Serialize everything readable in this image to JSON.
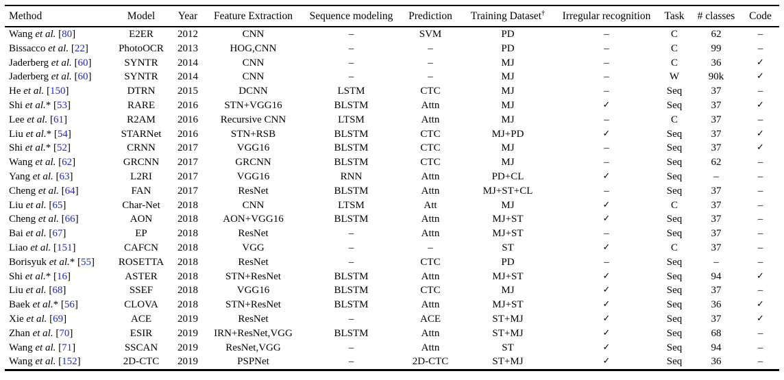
{
  "colors": {
    "citation_blue": "#2323CC",
    "text": "#000000",
    "background": "#ffffff"
  },
  "table": {
    "columns": [
      "Method",
      "Model",
      "Year",
      "Feature Extraction",
      "Sequence modeling",
      "Prediction",
      "Training Dataset",
      "Irregular recognition",
      "Task",
      "# classes",
      "Code"
    ],
    "training_dataset_superscript": "†",
    "cite_brackets": [
      "[",
      "]"
    ],
    "etal_label": "et al.",
    "check_symbol": "✓",
    "dash_symbol": "–",
    "rows": [
      {
        "method": {
          "name": "Wang",
          "etal": "et al.",
          "star": "",
          "cite": "80"
        },
        "cells": [
          "E2ER",
          "2012",
          "CNN",
          "–",
          "SVM",
          "PD",
          "–",
          "C",
          "62",
          "–"
        ]
      },
      {
        "method": {
          "name": "Bissacco",
          "etal": "et al.",
          "star": "",
          "cite": "22"
        },
        "cells": [
          "PhotoOCR",
          "2013",
          "HOG,CNN",
          "–",
          "–",
          "PD",
          "–",
          "C",
          "99",
          "–"
        ]
      },
      {
        "method": {
          "name": "Jaderberg",
          "etal": "et al.",
          "star": "",
          "cite": "60"
        },
        "cells": [
          "SYNTR",
          "2014",
          "CNN",
          "–",
          "–",
          "MJ",
          "–",
          "C",
          "36",
          "✓"
        ]
      },
      {
        "method": {
          "name": "Jaderberg",
          "etal": "et al.",
          "star": "",
          "cite": "60"
        },
        "cells": [
          "SYNTR",
          "2014",
          "CNN",
          "–",
          "–",
          "MJ",
          "–",
          "W",
          "90k",
          "✓"
        ]
      },
      {
        "method": {
          "name": "He",
          "etal": "et al.",
          "star": "",
          "cite": "150"
        },
        "cells": [
          "DTRN",
          "2015",
          "DCNN",
          "LSTM",
          "CTC",
          "MJ",
          "–",
          "Seq",
          "37",
          "–"
        ]
      },
      {
        "method": {
          "name": "Shi",
          "etal": "et al.",
          "star": "*",
          "cite": "53"
        },
        "cells": [
          "RARE",
          "2016",
          "STN+VGG16",
          "BLSTM",
          "Attn",
          "MJ",
          "✓",
          "Seq",
          "37",
          "✓"
        ]
      },
      {
        "method": {
          "name": "Lee",
          "etal": "et al.",
          "star": "",
          "cite": "61"
        },
        "cells": [
          "R2AM",
          "2016",
          "Recursive CNN",
          "LTSM",
          "Attn",
          "MJ",
          "–",
          "C",
          "37",
          "–"
        ]
      },
      {
        "method": {
          "name": "Liu",
          "etal": "et al.",
          "star": "*",
          "cite": "54"
        },
        "cells": [
          "STARNet",
          "2016",
          "STN+RSB",
          "BLSTM",
          "CTC",
          "MJ+PD",
          "✓",
          "Seq",
          "37",
          "✓"
        ]
      },
      {
        "method": {
          "name": "Shi",
          "etal": "et al.",
          "star": "*",
          "cite": "52"
        },
        "cells": [
          "CRNN",
          "2017",
          "VGG16",
          "BLSTM",
          "CTC",
          "MJ",
          "–",
          "Seq",
          "37",
          "✓"
        ]
      },
      {
        "method": {
          "name": "Wang",
          "etal": "et al.",
          "star": "",
          "cite": "62"
        },
        "cells": [
          "GRCNN",
          "2017",
          "GRCNN",
          "BLSTM",
          "CTC",
          "MJ",
          "–",
          "Seq",
          "62",
          "–"
        ]
      },
      {
        "method": {
          "name": "Yang",
          "etal": "et al.",
          "star": "",
          "cite": "63"
        },
        "cells": [
          "L2RI",
          "2017",
          "VGG16",
          "RNN",
          "Attn",
          "PD+CL",
          "✓",
          "Seq",
          "–",
          "–"
        ]
      },
      {
        "method": {
          "name": "Cheng",
          "etal": "et al.",
          "star": "",
          "cite": "64"
        },
        "cells": [
          "FAN",
          "2017",
          "ResNet",
          "BLSTM",
          "Attn",
          "MJ+ST+CL",
          "–",
          "Seq",
          "37",
          "–"
        ]
      },
      {
        "method": {
          "name": "Liu",
          "etal": "et al.",
          "star": "",
          "cite": "65"
        },
        "cells": [
          "Char-Net",
          "2018",
          "CNN",
          "LTSM",
          "Att",
          "MJ",
          "✓",
          "C",
          "37",
          "–"
        ]
      },
      {
        "method": {
          "name": "Cheng",
          "etal": "et al.",
          "star": "",
          "cite": "66"
        },
        "cells": [
          "AON",
          "2018",
          "AON+VGG16",
          "BLSTM",
          "Attn",
          "MJ+ST",
          "✓",
          "Seq",
          "37",
          "–"
        ]
      },
      {
        "method": {
          "name": "Bai",
          "etal": "et al.",
          "star": "",
          "cite": "67"
        },
        "cells": [
          "EP",
          "2018",
          "ResNet",
          "–",
          "Attn",
          "MJ+ST",
          "–",
          "Seq",
          "37",
          "–"
        ]
      },
      {
        "method": {
          "name": "Liao",
          "etal": "et al.",
          "star": "",
          "cite": "151"
        },
        "cells": [
          "CAFCN",
          "2018",
          "VGG",
          "–",
          "–",
          "ST",
          "✓",
          "C",
          "37",
          "–"
        ]
      },
      {
        "method": {
          "name": "Borisyuk",
          "etal": "et al.",
          "star": "*",
          "cite": "55"
        },
        "cells": [
          "ROSETTA",
          "2018",
          "ResNet",
          "–",
          "CTC",
          "PD",
          "–",
          "Seq",
          "–",
          "–"
        ]
      },
      {
        "method": {
          "name": "Shi",
          "etal": "et al.",
          "star": "*",
          "cite": "16"
        },
        "cells": [
          "ASTER",
          "2018",
          "STN+ResNet",
          "BLSTM",
          "Attn",
          "MJ+ST",
          "✓",
          "Seq",
          "94",
          "✓"
        ]
      },
      {
        "method": {
          "name": "Liu",
          "etal": "et al.",
          "star": "",
          "cite": "68"
        },
        "cells": [
          "SSEF",
          "2018",
          "VGG16",
          "BLSTM",
          "CTC",
          "MJ",
          "✓",
          "Seq",
          "37",
          "–"
        ]
      },
      {
        "method": {
          "name": "Baek",
          "etal": "et al.",
          "star": "*",
          "cite": "56"
        },
        "cells": [
          "CLOVA",
          "2018",
          "STN+ResNet",
          "BLSTM",
          "Attn",
          "MJ+ST",
          "✓",
          "Seq",
          "36",
          "✓"
        ]
      },
      {
        "method": {
          "name": "Xie",
          "etal": "et al.",
          "star": "",
          "cite": "69"
        },
        "cells": [
          "ACE",
          "2019",
          "ResNet",
          "–",
          "ACE",
          "ST+MJ",
          "✓",
          "Seq",
          "37",
          "✓"
        ]
      },
      {
        "method": {
          "name": "Zhan",
          "etal": "et al.",
          "star": "",
          "cite": "70"
        },
        "cells": [
          "ESIR",
          "2019",
          "IRN+ResNet,VGG",
          "BLSTM",
          "Attn",
          "ST+MJ",
          "✓",
          "Seq",
          "68",
          "–"
        ]
      },
      {
        "method": {
          "name": "Wang",
          "etal": "et al.",
          "star": "",
          "cite": "71"
        },
        "cells": [
          "SSCAN",
          "2019",
          "ResNet,VGG",
          "–",
          "Attn",
          "ST",
          "✓",
          "Seq",
          "94",
          "–"
        ]
      },
      {
        "method": {
          "name": "Wang",
          "etal": "et al.",
          "star": "",
          "cite": "152"
        },
        "cells": [
          "2D-CTC",
          "2019",
          "PSPNet",
          "–",
          "2D-CTC",
          "ST+MJ",
          "✓",
          "Seq",
          "36",
          "–"
        ]
      }
    ]
  }
}
